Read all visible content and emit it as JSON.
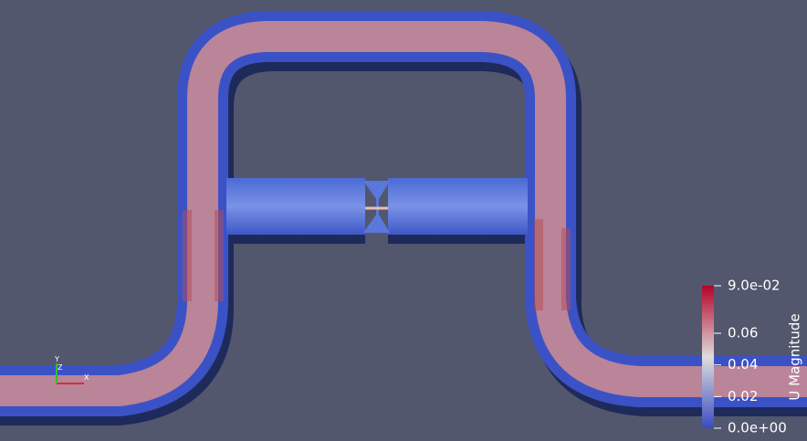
{
  "colorbar": {
    "title": "U Magnitude",
    "range": [
      0,
      0.09
    ],
    "ticks": [
      {
        "value": 0.09,
        "label": "9.0e-02"
      },
      0.06,
      0.04,
      0.02,
      {
        "value": 0,
        "label": "0.0e+00"
      }
    ]
  },
  "axes_triad": {
    "x": "X",
    "y": "Y",
    "z": "Z"
  }
}
